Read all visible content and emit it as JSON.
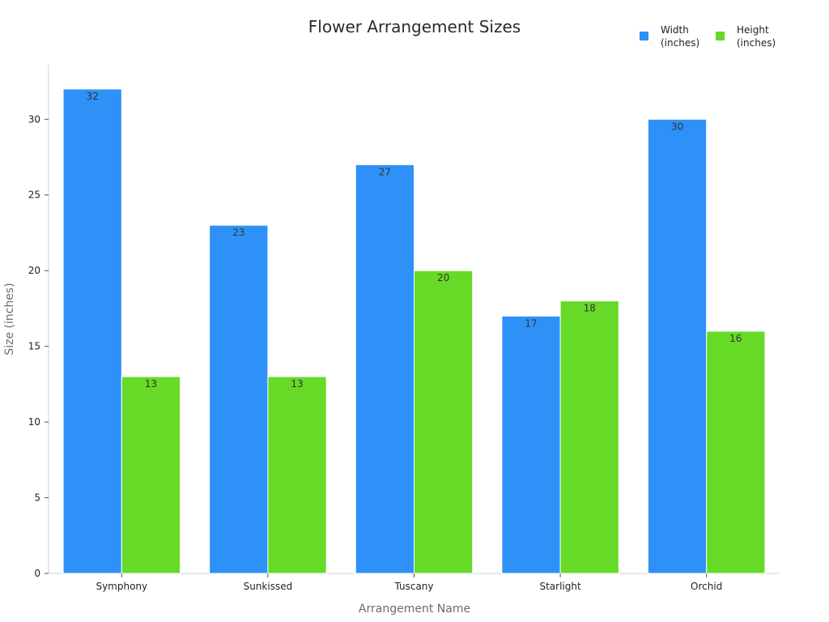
{
  "chart_data": {
    "type": "bar",
    "title": "Flower Arrangement Sizes",
    "xlabel": "Arrangement Name",
    "ylabel": "Size (inches)",
    "categories": [
      "Symphony",
      "Sunkissed",
      "Tuscany",
      "Starlight",
      "Orchid"
    ],
    "series": [
      {
        "name": "Width\n(inches)",
        "legend_lines": [
          "Width",
          "(inches)"
        ],
        "color": "#2E91F8",
        "values": [
          32,
          23,
          27,
          17,
          30
        ]
      },
      {
        "name": "Height\n(inches)",
        "legend_lines": [
          "Height",
          "(inches)"
        ],
        "color": "#66DA26",
        "values": [
          13,
          13,
          20,
          18,
          16
        ]
      }
    ],
    "ylim": [
      0,
      33.6
    ],
    "yticks": [
      0,
      5,
      10,
      15,
      20,
      25,
      30
    ],
    "grid": false,
    "legend_position": "top-right",
    "data_labels": true
  }
}
